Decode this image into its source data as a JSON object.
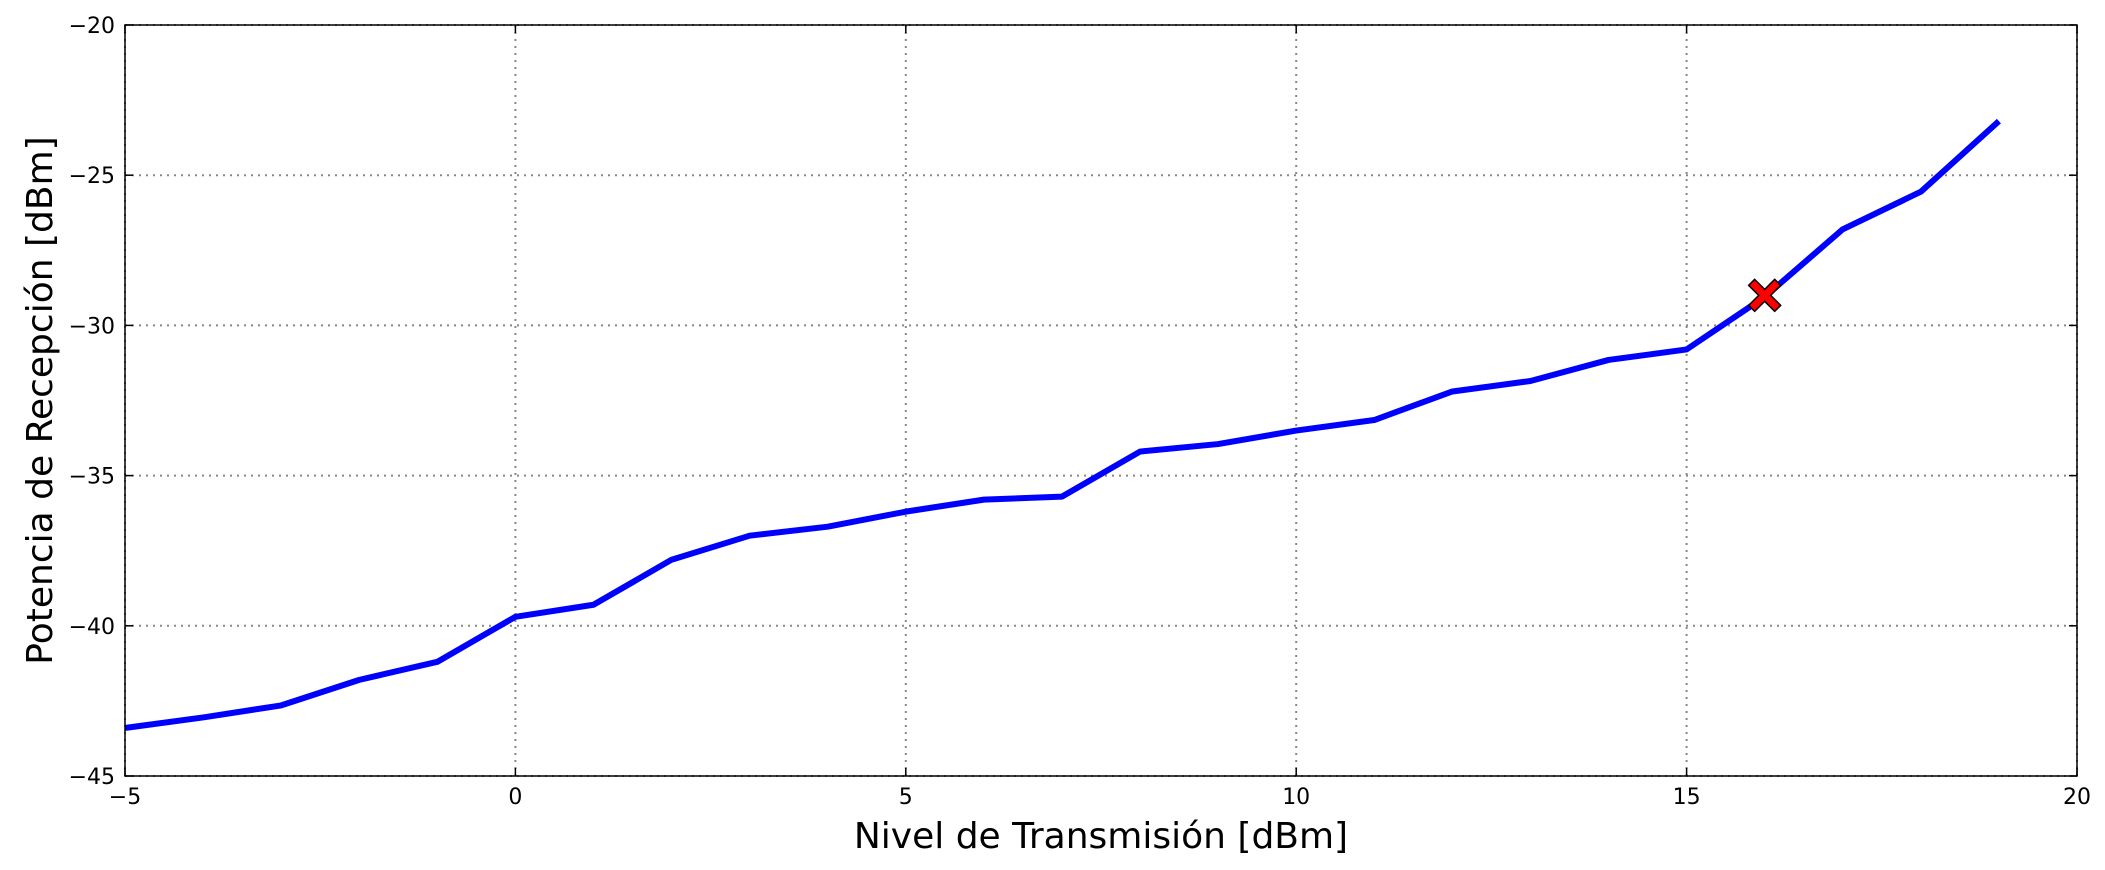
{
  "chart_data": {
    "type": "line",
    "xlabel": "Nivel de Transmisión [dBm]",
    "ylabel": "Potencia de Recepción [dBm]",
    "xlim": [
      -5,
      20
    ],
    "ylim": [
      -45,
      -20
    ],
    "xticks": [
      -5,
      0,
      5,
      10,
      15,
      20
    ],
    "yticks": [
      -45,
      -40,
      -35,
      -30,
      -25,
      -20
    ],
    "xtick_labels": [
      "−5",
      "0",
      "5",
      "10",
      "15",
      "20"
    ],
    "ytick_labels": [
      "−45",
      "−40",
      "−35",
      "−30",
      "−25",
      "−20"
    ],
    "grid": true,
    "series": [
      {
        "color": "#0000ff",
        "x": [
          -5,
          -4,
          -3,
          -2,
          -1,
          0,
          1,
          2,
          3,
          4,
          5,
          6,
          7,
          8,
          9,
          10,
          11,
          12,
          13,
          14,
          15,
          16,
          17,
          18,
          19
        ],
        "y": [
          -43.4,
          -43.05,
          -42.65,
          -41.8,
          -41.2,
          -39.7,
          -39.3,
          -37.8,
          -37.0,
          -36.7,
          -36.2,
          -35.8,
          -35.7,
          -34.2,
          -33.95,
          -33.5,
          -33.15,
          -32.2,
          -31.85,
          -31.15,
          -30.8,
          -29.05,
          -26.8,
          -25.55,
          -23.2
        ]
      }
    ],
    "marker": {
      "x": 16,
      "y": -29.0,
      "shape": "x-filled",
      "color": "#ff0000"
    }
  }
}
